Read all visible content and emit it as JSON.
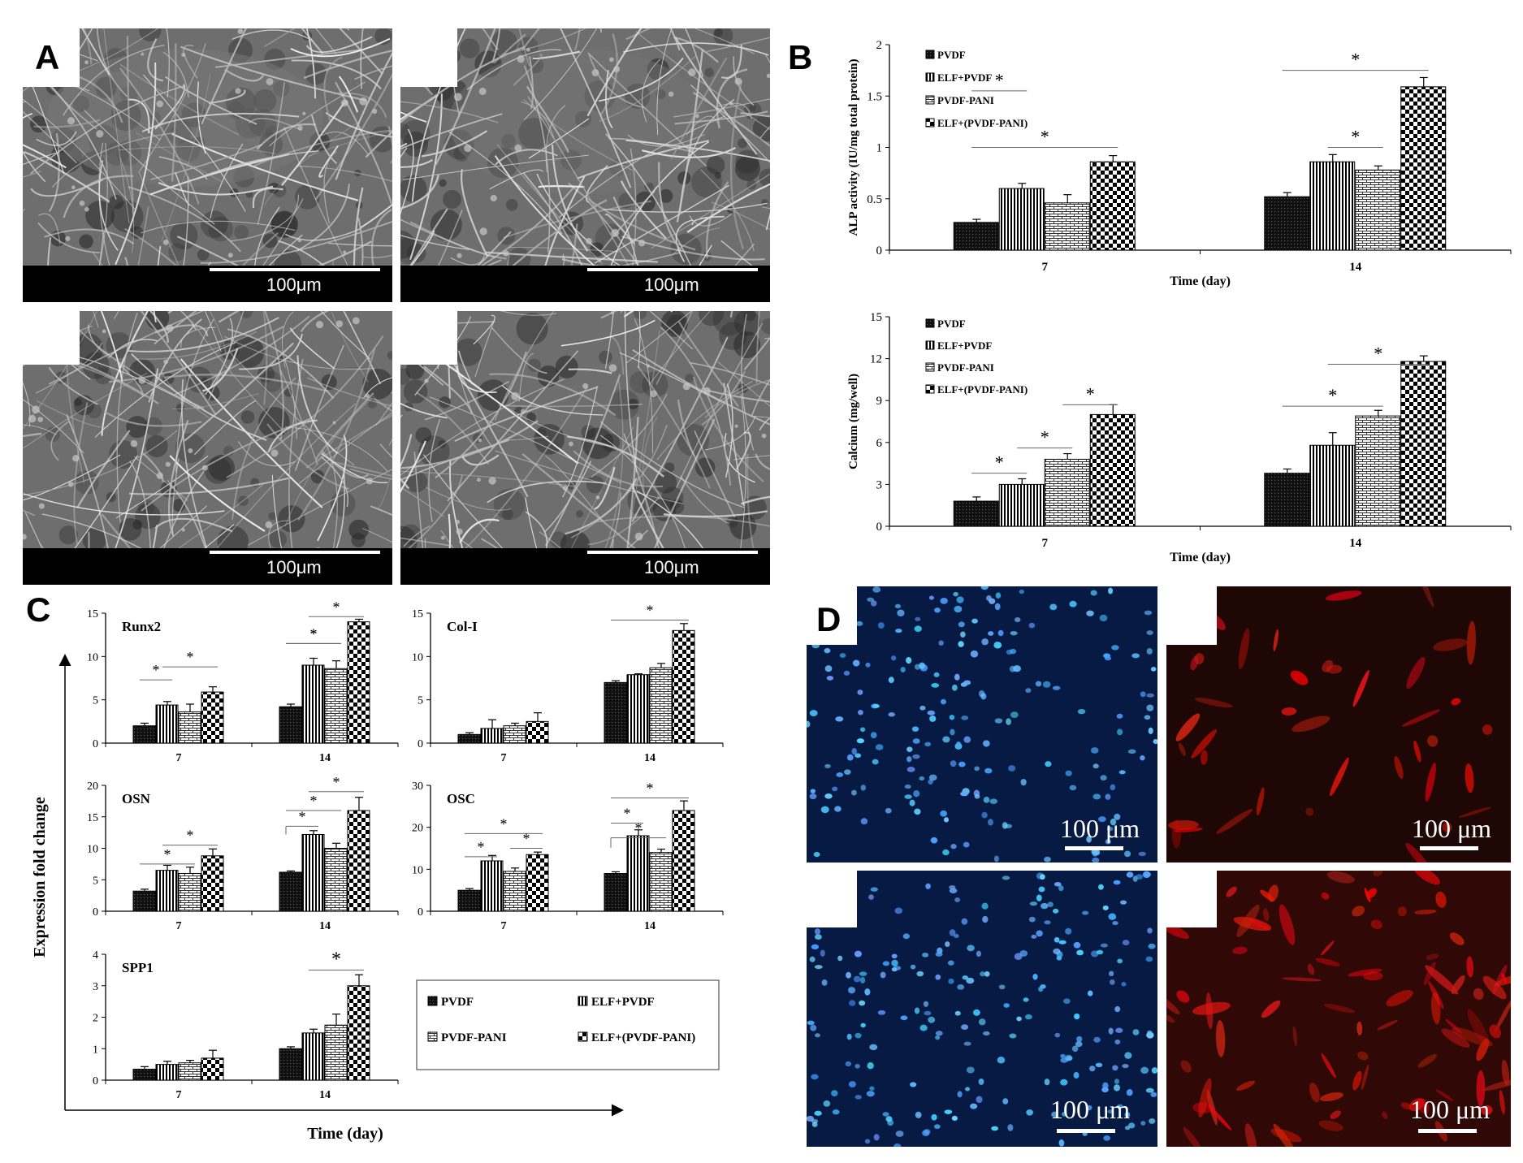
{
  "panels": {
    "a": "A",
    "b": "B",
    "c": "C",
    "d": "D"
  },
  "sem_scale": [
    "100μm",
    "100μm",
    "100μm",
    "100μm"
  ],
  "fluo_scale": [
    "100 μm",
    "100 μm",
    "100 μm",
    "100 μm"
  ],
  "panel_c_axes": {
    "ylabel": "Expression fold change",
    "xlabel": "Time (day)"
  },
  "legend_b": [
    "PVDF",
    "ELF+PVDF",
    "PVDF-PANI",
    "ELF+(PVDF-PANI)"
  ],
  "legend_c": [
    "PVDF",
    "ELF+PVDF",
    "PVDF-PANI",
    "ELF+(PVDF-PANI)"
  ],
  "colors": {
    "dark": "#1a1a1a",
    "stripe": "#000000",
    "background": "#ffffff"
  },
  "chart_data": [
    {
      "id": "alp",
      "type": "bar",
      "categories": [
        "7",
        "14"
      ],
      "series": [
        {
          "name": "PVDF",
          "values": [
            0.27,
            0.52
          ]
        },
        {
          "name": "ELF+PVDF",
          "values": [
            0.6,
            0.86
          ]
        },
        {
          "name": "PVDF-PANI",
          "values": [
            0.46,
            0.78
          ]
        },
        {
          "name": "ELF+(PVDF-PANI)",
          "values": [
            0.86,
            1.59
          ]
        }
      ],
      "errors": [
        [
          0.03,
          0.04
        ],
        [
          0.05,
          0.07
        ],
        [
          0.08,
          0.04
        ],
        [
          0.06,
          0.09
        ]
      ],
      "ylim": [
        0,
        2
      ],
      "yticks": [
        "0",
        "0.5",
        "1",
        "1.5",
        "2"
      ],
      "ylabel": "ALP activity (IU/mg total protein)",
      "xlabel": "Time (day)",
      "significance": [
        "*",
        "*",
        "*",
        "*"
      ]
    },
    {
      "id": "calcium",
      "type": "bar",
      "categories": [
        "7",
        "14"
      ],
      "series": [
        {
          "name": "PVDF",
          "values": [
            1.8,
            3.8
          ]
        },
        {
          "name": "ELF+PVDF",
          "values": [
            3.0,
            5.8
          ]
        },
        {
          "name": "PVDF-PANI",
          "values": [
            4.8,
            7.9
          ]
        },
        {
          "name": "ELF+(PVDF-PANI)",
          "values": [
            8.0,
            11.8
          ]
        }
      ],
      "errors": [
        [
          0.3,
          0.3
        ],
        [
          0.4,
          0.9
        ],
        [
          0.4,
          0.4
        ],
        [
          0.7,
          0.4
        ]
      ],
      "ylim": [
        0,
        15
      ],
      "yticks": [
        "0",
        "3",
        "6",
        "9",
        "12",
        "15"
      ],
      "ylabel": "Calcium (mg/well)",
      "xlabel": "Time (day)",
      "significance": [
        "*",
        "*",
        "*",
        "*",
        "*"
      ]
    },
    {
      "id": "runx2",
      "type": "bar",
      "title": "Runx2",
      "categories": [
        "7",
        "14"
      ],
      "series": [
        {
          "name": "PVDF",
          "values": [
            2.0,
            4.2
          ]
        },
        {
          "name": "ELF+PVDF",
          "values": [
            4.4,
            9.0
          ]
        },
        {
          "name": "PVDF-PANI",
          "values": [
            3.6,
            8.6
          ]
        },
        {
          "name": "ELF+(PVDF-PANI)",
          "values": [
            5.9,
            14.0
          ]
        }
      ],
      "errors": [
        [
          0.3,
          0.3
        ],
        [
          0.4,
          0.8
        ],
        [
          0.9,
          0.9
        ],
        [
          0.6,
          0.3
        ]
      ],
      "ylim": [
        0,
        15
      ],
      "yticks": [
        "0",
        "5",
        "10",
        "15"
      ],
      "significance": [
        "*",
        "*",
        "*",
        "*",
        "*"
      ]
    },
    {
      "id": "col1",
      "type": "bar",
      "title": "Col-I",
      "categories": [
        "7",
        "14"
      ],
      "series": [
        {
          "name": "PVDF",
          "values": [
            1.0,
            7.0
          ]
        },
        {
          "name": "ELF+PVDF",
          "values": [
            1.7,
            7.9
          ]
        },
        {
          "name": "PVDF-PANI",
          "values": [
            2.0,
            8.7
          ]
        },
        {
          "name": "ELF+(PVDF-PANI)",
          "values": [
            2.5,
            13.0
          ]
        }
      ],
      "errors": [
        [
          0.2,
          0.2
        ],
        [
          1.0,
          0.1
        ],
        [
          0.3,
          0.5
        ],
        [
          1.0,
          0.8
        ]
      ],
      "ylim": [
        0,
        15
      ],
      "yticks": [
        "0",
        "5",
        "10",
        "15"
      ],
      "significance": [
        "*"
      ]
    },
    {
      "id": "osn",
      "type": "bar",
      "title": "OSN",
      "categories": [
        "7",
        "14"
      ],
      "series": [
        {
          "name": "PVDF",
          "values": [
            3.2,
            6.2
          ]
        },
        {
          "name": "ELF+PVDF",
          "values": [
            6.5,
            12.2
          ]
        },
        {
          "name": "PVDF-PANI",
          "values": [
            6.0,
            10.0
          ]
        },
        {
          "name": "ELF+(PVDF-PANI)",
          "values": [
            8.8,
            16.0
          ]
        }
      ],
      "errors": [
        [
          0.3,
          0.2
        ],
        [
          0.8,
          0.6
        ],
        [
          1.0,
          0.8
        ],
        [
          1.1,
          2.1
        ]
      ],
      "ylim": [
        0,
        20
      ],
      "yticks": [
        "0",
        "5",
        "10",
        "15",
        "20"
      ],
      "significance": [
        "*",
        "*",
        "*",
        "*",
        "*"
      ]
    },
    {
      "id": "osc",
      "type": "bar",
      "title": "OSC",
      "categories": [
        "7",
        "14"
      ],
      "series": [
        {
          "name": "PVDF",
          "values": [
            5.0,
            9.0
          ]
        },
        {
          "name": "ELF+PVDF",
          "values": [
            12.0,
            18.0
          ]
        },
        {
          "name": "PVDF-PANI",
          "values": [
            9.5,
            14.0
          ]
        },
        {
          "name": "ELF+(PVDF-PANI)",
          "values": [
            13.5,
            24.0
          ]
        }
      ],
      "errors": [
        [
          0.4,
          0.4
        ],
        [
          1.3,
          1.4
        ],
        [
          0.8,
          0.8
        ],
        [
          0.6,
          2.3
        ]
      ],
      "ylim": [
        0,
        30
      ],
      "yticks": [
        "0",
        "10",
        "20",
        "30"
      ],
      "significance": [
        "*",
        "*",
        "*",
        "*",
        "*",
        "*"
      ]
    },
    {
      "id": "spp1",
      "type": "bar",
      "title": "SPP1",
      "categories": [
        "7",
        "14"
      ],
      "series": [
        {
          "name": "PVDF",
          "values": [
            0.35,
            1.0
          ]
        },
        {
          "name": "ELF+PVDF",
          "values": [
            0.5,
            1.5
          ]
        },
        {
          "name": "PVDF-PANI",
          "values": [
            0.55,
            1.75
          ]
        },
        {
          "name": "ELF+(PVDF-PANI)",
          "values": [
            0.7,
            3.0
          ]
        }
      ],
      "errors": [
        [
          0.08,
          0.06
        ],
        [
          0.1,
          0.12
        ],
        [
          0.08,
          0.35
        ],
        [
          0.25,
          0.35
        ]
      ],
      "ylim": [
        0,
        4
      ],
      "yticks": [
        "0",
        "1",
        "2",
        "3",
        "4"
      ],
      "significance": [
        "*"
      ]
    }
  ]
}
